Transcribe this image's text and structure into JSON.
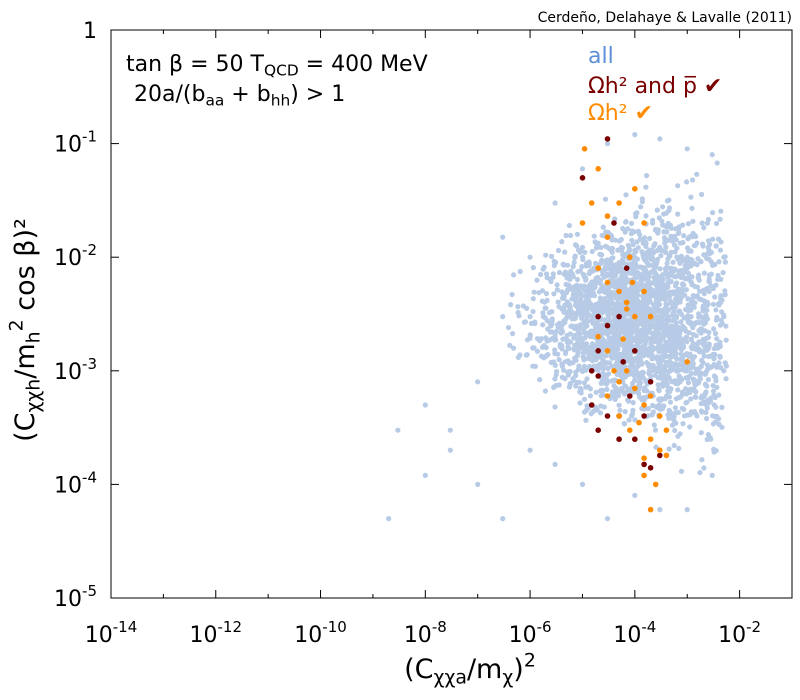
{
  "credit": "Cerdeño, Delahaye & Lavalle (2011)",
  "annotation": {
    "line1_a": "tan β = 50",
    "line1_b": "T",
    "line1_sub": "QCD",
    "line1_c": " = 400 MeV",
    "line2_a": "20a/(b",
    "line2_sub1": "aa",
    "line2_b": " + b",
    "line2_sub2": "hh",
    "line2_c": ") > 1"
  },
  "axis_labels": {
    "x_a": "(C",
    "x_sub": "χχa",
    "x_b": "/m",
    "x_sub2": "χ",
    "x_c": ")",
    "x_sup": "2",
    "y_a": "(C",
    "y_sub": "χχh",
    "y_b": "/m",
    "y_sub2": "h",
    "y_sup": "2",
    "y_c": " cos β)²"
  },
  "chart_data": {
    "type": "scatter",
    "title": "",
    "xscale": "log",
    "yscale": "log",
    "xlim": [
      1e-14,
      0.1
    ],
    "ylim": [
      1e-05,
      1
    ],
    "x_ticks": [
      {
        "value": 1e-14,
        "base": "10",
        "exp": "-14"
      },
      {
        "value": 1e-12,
        "base": "10",
        "exp": "-12"
      },
      {
        "value": 1e-10,
        "base": "10",
        "exp": "-10"
      },
      {
        "value": 1e-08,
        "base": "10",
        "exp": "-8"
      },
      {
        "value": 1e-06,
        "base": "10",
        "exp": "-6"
      },
      {
        "value": 0.0001,
        "base": "10",
        "exp": "-4"
      },
      {
        "value": 0.01,
        "base": "10",
        "exp": "-2"
      }
    ],
    "y_ticks": [
      {
        "value": 1,
        "base": "1",
        "exp": ""
      },
      {
        "value": 0.1,
        "base": "10",
        "exp": "-1"
      },
      {
        "value": 0.01,
        "base": "10",
        "exp": "-2"
      },
      {
        "value": 0.001,
        "base": "10",
        "exp": "-3"
      },
      {
        "value": 0.0001,
        "base": "10",
        "exp": "-4"
      },
      {
        "value": 1e-05,
        "base": "10",
        "exp": "-5"
      }
    ],
    "legend": [
      {
        "label": "all",
        "color": "#b7cbe6"
      },
      {
        "label": "Ωh² and p̅ ✔",
        "color": "#7a0000"
      },
      {
        "label": "Ωh² ✔",
        "color": "#ff8c00"
      }
    ],
    "legend_position": "top-right",
    "series": [
      {
        "name": "all",
        "color": "#b7cbe6",
        "points": [
          [
            2e-09,
            5e-05
          ],
          [
            1e-08,
            0.00012
          ],
          [
            3e-08,
            0.0003
          ],
          [
            1e-07,
            0.0008
          ],
          [
            3e-07,
            0.003
          ],
          [
            1e-06,
            0.01
          ],
          [
            3e-06,
            0.03
          ],
          [
            1e-05,
            0.06
          ],
          [
            3e-05,
            0.1
          ],
          [
            0.0001,
            0.12
          ],
          [
            0.0003,
            0.11
          ],
          [
            0.001,
            0.09
          ],
          [
            0.003,
            0.08
          ],
          [
            0.005,
            0.01
          ],
          [
            0.005,
            0.001
          ],
          [
            0.003,
            0.00012
          ],
          [
            0.001,
            6e-05
          ],
          [
            0.0003,
            6e-05
          ],
          [
            0.0001,
            8e-05
          ],
          [
            3e-05,
            5e-05
          ],
          [
            1e-05,
            0.0001
          ],
          [
            3e-06,
            0.00015
          ],
          [
            1e-06,
            0.0002
          ],
          [
            3e-07,
            5e-05
          ],
          [
            1e-07,
            0.0001
          ],
          [
            3e-08,
            0.0002
          ],
          [
            3e-09,
            0.0003
          ],
          [
            1e-08,
            0.0005
          ],
          [
            3e-07,
            0.015
          ],
          [
            1e-06,
            0.003
          ],
          [
            1e-05,
            0.001
          ],
          [
            0.0001,
            0.001
          ],
          [
            0.001,
            0.001
          ],
          [
            0.001,
            0.01
          ],
          [
            0.0001,
            0.01
          ],
          [
            1e-05,
            0.01
          ]
        ]
      },
      {
        "name": "Ωh² and p̅ ✔",
        "color": "#7a0000",
        "points": [
          [
            3e-05,
            0.11
          ],
          [
            1e-05,
            0.05
          ],
          [
            4e-05,
            0.02
          ],
          [
            2e-05,
            0.003
          ],
          [
            3e-05,
            0.0025
          ],
          [
            2e-05,
            0.0015
          ],
          [
            1.5e-05,
            0.001
          ],
          [
            2e-05,
            0.0009
          ],
          [
            1.5e-05,
            0.0005
          ],
          [
            3e-05,
            0.0004
          ],
          [
            2e-05,
            0.0003
          ],
          [
            5e-05,
            0.003
          ],
          [
            7e-05,
            0.008
          ],
          [
            6e-05,
            0.0012
          ],
          [
            8e-05,
            0.0006
          ],
          [
            5e-05,
            0.0004
          ],
          [
            0.0001,
            0.00025
          ],
          [
            0.00015,
            0.00015
          ],
          [
            0.0002,
            0.00014
          ],
          [
            0.0003,
            0.00018
          ],
          [
            0.0001,
            0.0015
          ],
          [
            0.0002,
            0.0008
          ],
          [
            0.00015,
            0.0004
          ],
          [
            5e-05,
            0.00025
          ]
        ]
      },
      {
        "name": "Ωh² ✔",
        "color": "#ff8c00",
        "points": [
          [
            1.1e-05,
            0.09
          ],
          [
            2e-05,
            0.06
          ],
          [
            1.5e-05,
            0.03
          ],
          [
            1e-05,
            0.02
          ],
          [
            3e-05,
            0.015
          ],
          [
            5e-05,
            0.03
          ],
          [
            8e-05,
            0.01
          ],
          [
            0.0001,
            0.04
          ],
          [
            0.00015,
            0.02
          ],
          [
            2e-05,
            0.008
          ],
          [
            3e-05,
            0.006
          ],
          [
            5e-05,
            0.005
          ],
          [
            7e-05,
            0.004
          ],
          [
            0.0001,
            0.003
          ],
          [
            0.00015,
            0.005
          ],
          [
            0.0002,
            0.003
          ],
          [
            2e-05,
            0.002
          ],
          [
            3e-05,
            0.0015
          ],
          [
            4e-05,
            0.001
          ],
          [
            5e-05,
            0.0008
          ],
          [
            7e-05,
            0.001
          ],
          [
            0.0001,
            0.0007
          ],
          [
            0.00015,
            0.0005
          ],
          [
            0.0002,
            0.0006
          ],
          [
            0.0003,
            0.0004
          ],
          [
            0.0004,
            0.0003
          ],
          [
            3e-05,
            0.0006
          ],
          [
            5e-05,
            0.0004
          ],
          [
            8e-05,
            0.0003
          ],
          [
            0.00012,
            0.00035
          ],
          [
            0.0002,
            0.00025
          ],
          [
            0.0003,
            0.0002
          ],
          [
            0.0004,
            0.00018
          ],
          [
            0.00015,
            0.00012
          ],
          [
            0.00025,
            0.0001
          ],
          [
            0.0002,
            6e-05
          ],
          [
            0.00015,
            0.00017
          ],
          [
            0.001,
            0.0012
          ],
          [
            7e-05,
            0.0035
          ],
          [
            3e-05,
            0.023
          ],
          [
            6e-05,
            0.0019
          ],
          [
            9e-05,
            0.006
          ]
        ]
      }
    ]
  }
}
